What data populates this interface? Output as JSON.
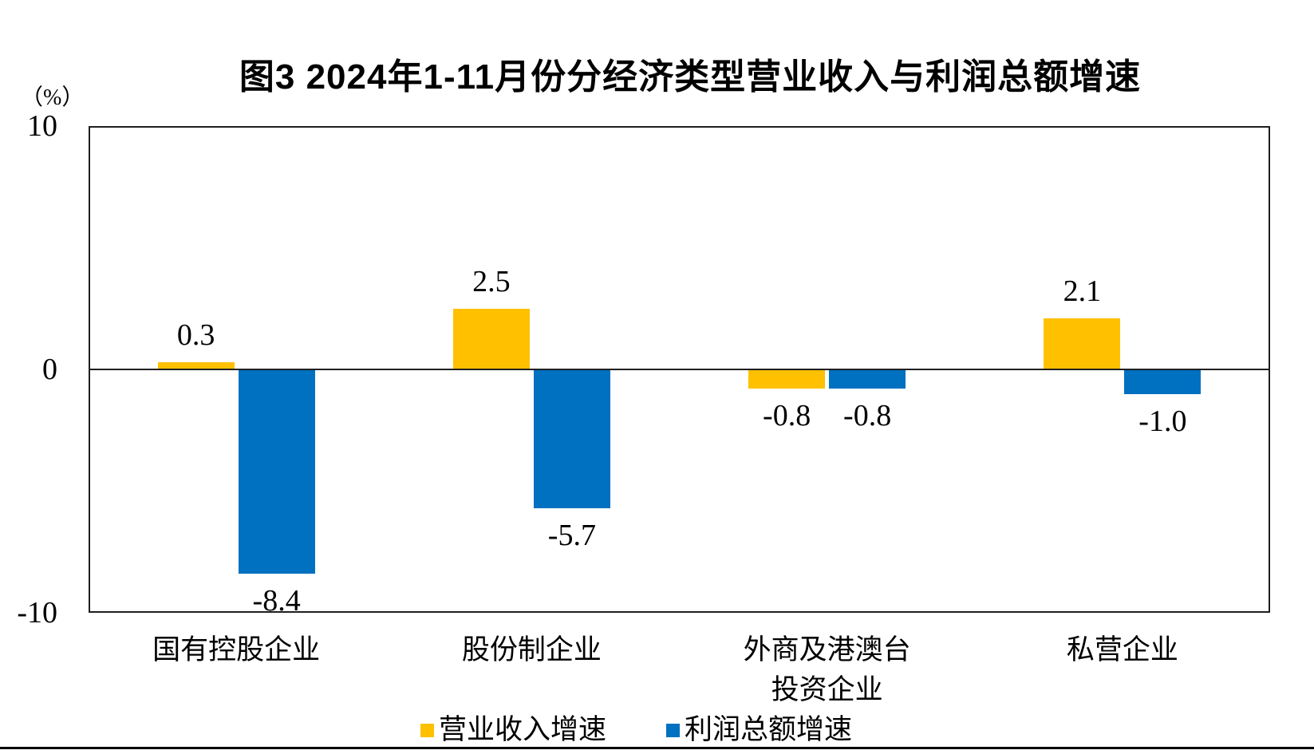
{
  "figure": {
    "title": "图3 2024年1-11月份分经济类型营业收入与利润总额增速",
    "unit_label": "（%）"
  },
  "chart_data": {
    "type": "bar",
    "title": "图3 2024年1-11月份分经济类型营业收入与利润总额增速",
    "ylabel": "（%）",
    "categories": [
      "国有控股企业",
      "股份制企业",
      "外商及港澳台\n投资企业",
      "私营企业"
    ],
    "series": [
      {
        "name": "营业收入增速",
        "color": "#FFC000",
        "values": [
          0.3,
          2.5,
          -0.8,
          2.1
        ]
      },
      {
        "name": "利润总额增速",
        "color": "#0070C0",
        "values": [
          -8.4,
          -5.7,
          -0.8,
          -1.0
        ]
      }
    ],
    "ylim": [
      -10,
      10
    ],
    "yticks": [
      10,
      0,
      -10
    ],
    "grid": false,
    "legend_position": "bottom",
    "data_labels": "outside-end"
  }
}
